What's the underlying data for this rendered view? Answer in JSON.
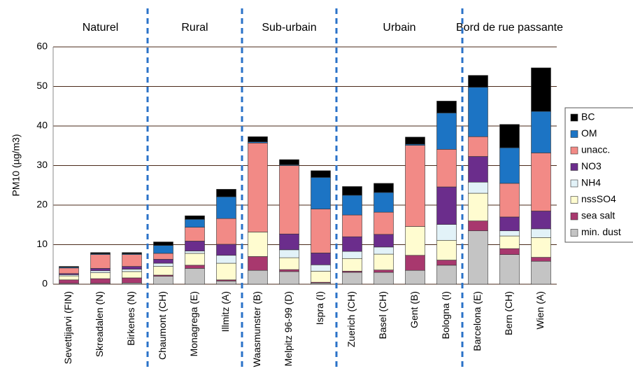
{
  "chart_data": {
    "type": "stacked_bar",
    "ylabel": "PM10 (µg/m3)",
    "groups": [
      "Naturel",
      "Rural",
      "Sub-urbain",
      "Urbain",
      "Bord de rue passante"
    ],
    "categories": [
      "Sevettijarvi (FIN)",
      "Skreadalen (N)",
      "Birkenes (N)",
      "Chaumont (CH)",
      "Monagrega (E)",
      "Illmitz (A)",
      "Waasmunster (B)",
      "Melpitz 96-99 (D)",
      "Ispra (I)",
      "Zuerich (CH)",
      "Basel (CH)",
      "Gent (B)",
      "Bologna (I)",
      "Barcelona (E)",
      "Bern (CH)",
      "Wien (A)"
    ],
    "series": [
      {
        "name": "min. dust",
        "color": "#c4c4c4",
        "values": [
          0.2,
          0.2,
          0.3,
          2.0,
          4.0,
          0.8,
          3.5,
          3.2,
          0.3,
          3.0,
          3.0,
          3.5,
          4.8,
          13.5,
          7.5,
          5.8
        ]
      },
      {
        "name": "sea salt",
        "color": "#a8386e",
        "values": [
          0.9,
          1.2,
          1.3,
          0.3,
          0.8,
          0.3,
          3.5,
          0.5,
          0.2,
          0.3,
          0.6,
          3.8,
          1.3,
          2.5,
          1.5,
          1.0
        ]
      },
      {
        "name": "nssSO4",
        "color": "#fffcd0",
        "values": [
          1.0,
          1.5,
          1.6,
          2.2,
          3.0,
          4.2,
          6.2,
          3.0,
          2.8,
          3.2,
          4.0,
          7.3,
          5.0,
          7.0,
          3.2,
          5.0
        ]
      },
      {
        "name": "NH4",
        "color": "#e2f2f8",
        "values": [
          0.3,
          0.5,
          0.6,
          0.8,
          0.6,
          2.0,
          0,
          2.0,
          1.6,
          1.8,
          1.8,
          0,
          4.0,
          2.8,
          1.3,
          2.2
        ]
      },
      {
        "name": "NO3",
        "color": "#6b2d8c",
        "values": [
          0.3,
          0.6,
          0.7,
          1.0,
          2.5,
          2.8,
          0,
          4.0,
          3.0,
          3.7,
          3.2,
          0,
          9.5,
          6.5,
          3.5,
          4.5
        ]
      },
      {
        "name": "unacc.",
        "color": "#f28a86",
        "values": [
          1.4,
          3.5,
          3.0,
          1.5,
          3.5,
          6.5,
          22.5,
          17.3,
          11.1,
          5.5,
          5.6,
          20.5,
          9.5,
          5.0,
          8.5,
          14.7
        ]
      },
      {
        "name": "OM",
        "color": "#1c74c4",
        "values": [
          0.2,
          0.2,
          0.2,
          2.0,
          2.0,
          5.5,
          0.3,
          0.2,
          8.0,
          5.0,
          5.0,
          0.3,
          9.2,
          12.5,
          9.0,
          10.5
        ]
      },
      {
        "name": "BC",
        "color": "#000000",
        "values": [
          0.2,
          0.3,
          0.3,
          0.9,
          0.9,
          1.9,
          1.3,
          1.3,
          1.7,
          2.2,
          2.3,
          1.8,
          3.0,
          3.0,
          5.9,
          11.0
        ]
      }
    ],
    "ylim": [
      0,
      60
    ],
    "yticks": [
      0,
      10,
      20,
      30,
      40,
      50,
      60
    ],
    "grid": true
  }
}
